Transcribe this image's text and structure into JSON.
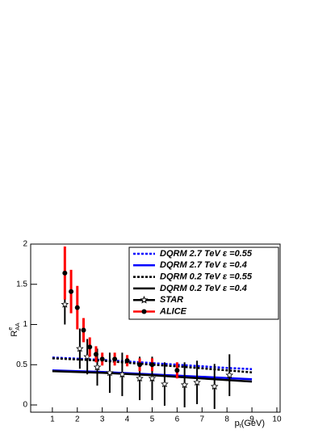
{
  "chart_data": {
    "type": "line",
    "ylabel": {
      "base": "R",
      "sup": "e",
      "sub": "AA"
    },
    "xlabel": {
      "base": "p",
      "sub": "t",
      "rest": "(GeV)"
    },
    "xlim": [
      0.13,
      10.13
    ],
    "xticks": [
      1,
      2,
      3,
      4,
      5,
      6,
      7,
      8,
      9,
      10
    ],
    "ylim": [
      -0.09,
      2
    ],
    "yticks": [
      0,
      0.5,
      1,
      1.5,
      2
    ],
    "series": [
      {
        "name": "DQRM 2.7 TeV ε =0.55",
        "color": "#0000ff",
        "dash": "3,2",
        "kind": "line",
        "x": [
          1,
          2,
          3,
          4,
          5,
          6,
          7,
          8,
          9
        ],
        "values": [
          0.59,
          0.575,
          0.56,
          0.54,
          0.52,
          0.5,
          0.48,
          0.46,
          0.445
        ]
      },
      {
        "name": "DQRM 2.7 TeV ε =0.4",
        "color": "#0000ff",
        "dash": "none",
        "kind": "line",
        "x": [
          1,
          2,
          3,
          4,
          5,
          6,
          7,
          8,
          9
        ],
        "values": [
          0.43,
          0.42,
          0.41,
          0.395,
          0.38,
          0.365,
          0.35,
          0.335,
          0.32
        ]
      },
      {
        "name": "DQRM 0.2 TeV ε =0.55",
        "color": "#000000",
        "dash": "3,2",
        "kind": "line",
        "x": [
          1,
          2,
          3,
          4,
          5,
          6,
          7,
          8,
          9
        ],
        "values": [
          0.58,
          0.565,
          0.55,
          0.525,
          0.5,
          0.48,
          0.455,
          0.43,
          0.405
        ]
      },
      {
        "name": "DQRM 0.2 TeV ε =0.4",
        "color": "#000000",
        "dash": "none",
        "kind": "line",
        "x": [
          1,
          2,
          3,
          4,
          5,
          6,
          7,
          8,
          9
        ],
        "values": [
          0.42,
          0.41,
          0.4,
          0.385,
          0.37,
          0.35,
          0.33,
          0.31,
          0.29
        ]
      },
      {
        "name": "STAR",
        "color": "#000000",
        "kind": "star",
        "x": [
          1.5,
          2.1,
          2.4,
          2.8,
          3.3,
          3.8,
          4.5,
          5.0,
          5.5,
          6.3,
          6.8,
          7.5,
          8.1
        ],
        "values": [
          1.25,
          0.7,
          0.6,
          0.47,
          0.4,
          0.38,
          0.33,
          0.33,
          0.26,
          0.25,
          0.28,
          0.23,
          0.37
        ],
        "errors": [
          0.25,
          0.25,
          0.22,
          0.23,
          0.25,
          0.27,
          0.27,
          0.27,
          0.27,
          0.28,
          0.27,
          0.28,
          0.26
        ]
      },
      {
        "name": "ALICE",
        "color": "#ff0000",
        "kind": "circle",
        "x": [
          1.5,
          1.75,
          2.0,
          2.25,
          2.5,
          2.75,
          3.0,
          3.5,
          4.0,
          4.5,
          5.0,
          6.0
        ],
        "values": [
          1.64,
          1.41,
          1.21,
          0.93,
          0.72,
          0.63,
          0.57,
          0.57,
          0.55,
          0.5,
          0.5,
          0.43
        ],
        "errors": [
          0.33,
          0.27,
          0.27,
          0.15,
          0.12,
          0.1,
          0.08,
          0.08,
          0.07,
          0.08,
          0.08,
          0.1
        ]
      }
    ]
  }
}
